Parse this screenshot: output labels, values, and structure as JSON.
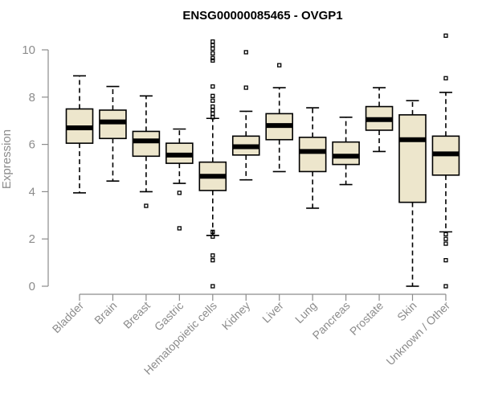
{
  "chart_data": {
    "type": "box",
    "title": "ENSG00000085465 - OVGP1",
    "xlabel": "",
    "ylabel": "Expression",
    "ylim": [
      0,
      10.7
    ],
    "yticks": [
      0,
      2,
      4,
      6,
      8,
      10
    ],
    "box_fill": "#ede6cc",
    "categories": [
      "Bladder",
      "Brain",
      "Breast",
      "Gastric",
      "Hematopoietic cells",
      "Kidney",
      "Liver",
      "Lung",
      "Pancreas",
      "Prostate",
      "Skin",
      "Unknown / Other"
    ],
    "boxes": [
      {
        "min": 3.95,
        "q1": 6.05,
        "median": 6.7,
        "q3": 7.5,
        "max": 8.9,
        "outliers": []
      },
      {
        "min": 4.45,
        "q1": 6.25,
        "median": 6.95,
        "q3": 7.45,
        "max": 8.45,
        "outliers": []
      },
      {
        "min": 4.0,
        "q1": 5.5,
        "median": 6.15,
        "q3": 6.55,
        "max": 8.05,
        "outliers": [
          3.4
        ]
      },
      {
        "min": 4.35,
        "q1": 5.2,
        "median": 5.55,
        "q3": 6.05,
        "max": 6.65,
        "outliers": [
          3.95,
          2.45
        ]
      },
      {
        "min": 2.15,
        "q1": 4.05,
        "median": 4.65,
        "q3": 5.25,
        "max": 7.1,
        "outliers": [
          10.35,
          10.2,
          10.05,
          9.85,
          9.65,
          9.55,
          8.45,
          8.05,
          7.85,
          7.6,
          7.45,
          7.3,
          7.15,
          2.3,
          2.1,
          1.3,
          1.1,
          0.0
        ]
      },
      {
        "min": 4.5,
        "q1": 5.55,
        "median": 5.9,
        "q3": 6.35,
        "max": 7.4,
        "outliers": [
          9.9,
          8.4
        ]
      },
      {
        "min": 4.85,
        "q1": 6.2,
        "median": 6.8,
        "q3": 7.3,
        "max": 8.4,
        "outliers": [
          9.35
        ]
      },
      {
        "min": 3.3,
        "q1": 4.85,
        "median": 5.7,
        "q3": 6.3,
        "max": 7.55,
        "outliers": []
      },
      {
        "min": 4.3,
        "q1": 5.15,
        "median": 5.5,
        "q3": 6.1,
        "max": 7.15,
        "outliers": []
      },
      {
        "min": 5.7,
        "q1": 6.6,
        "median": 7.05,
        "q3": 7.6,
        "max": 8.4,
        "outliers": []
      },
      {
        "min": 0.0,
        "q1": 3.55,
        "median": 6.2,
        "q3": 7.25,
        "max": 7.85,
        "outliers": []
      },
      {
        "min": 2.3,
        "q1": 4.7,
        "median": 5.6,
        "q3": 6.35,
        "max": 8.2,
        "outliers": [
          10.6,
          8.8,
          2.2,
          2.0,
          1.8,
          1.1,
          0.0
        ]
      }
    ]
  }
}
